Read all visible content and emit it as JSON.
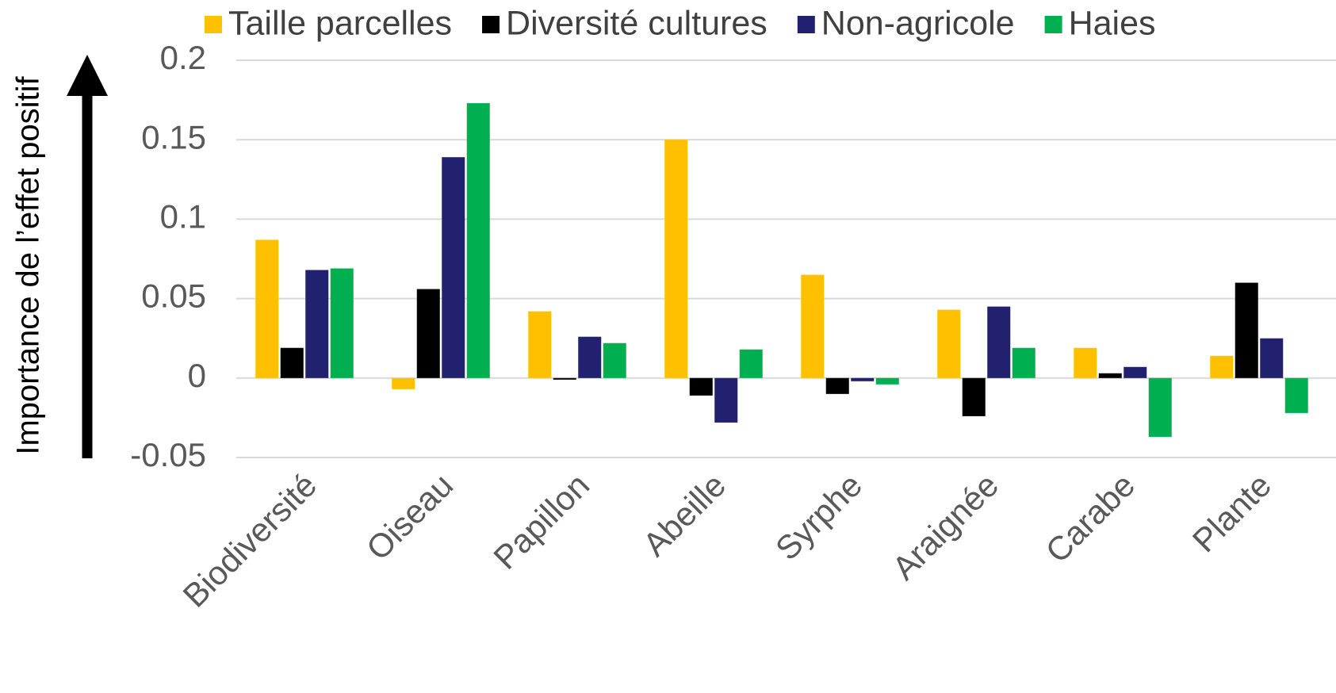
{
  "chart_data": {
    "type": "bar",
    "y_label": "Importance de l’effet positif",
    "categories": [
      "Biodiversité",
      "Oiseau",
      "Papillon",
      "Abeille",
      "Syrphe",
      "Araignée",
      "Carabe",
      "Plante"
    ],
    "series": [
      {
        "name": "Taille parcelles",
        "color": "#ffc000",
        "values": [
          0.087,
          -0.007,
          0.042,
          0.15,
          0.065,
          0.043,
          0.019,
          0.014
        ]
      },
      {
        "name": "Diversité cultures",
        "color": "#000000",
        "values": [
          0.019,
          0.056,
          -0.001,
          -0.011,
          -0.01,
          -0.024,
          0.003,
          0.06
        ]
      },
      {
        "name": "Non-agricole",
        "color": "#212170",
        "values": [
          0.068,
          0.139,
          0.026,
          -0.028,
          -0.002,
          0.045,
          0.007,
          0.025
        ]
      },
      {
        "name": "Haies",
        "color": "#00b050",
        "values": [
          0.069,
          0.173,
          0.022,
          0.018,
          -0.004,
          0.019,
          -0.037,
          -0.022
        ]
      }
    ],
    "ylim": [
      -0.05,
      0.2
    ],
    "yticks": [
      0.2,
      0.15,
      0.1,
      0.05,
      0,
      -0.05
    ],
    "grid": true
  }
}
